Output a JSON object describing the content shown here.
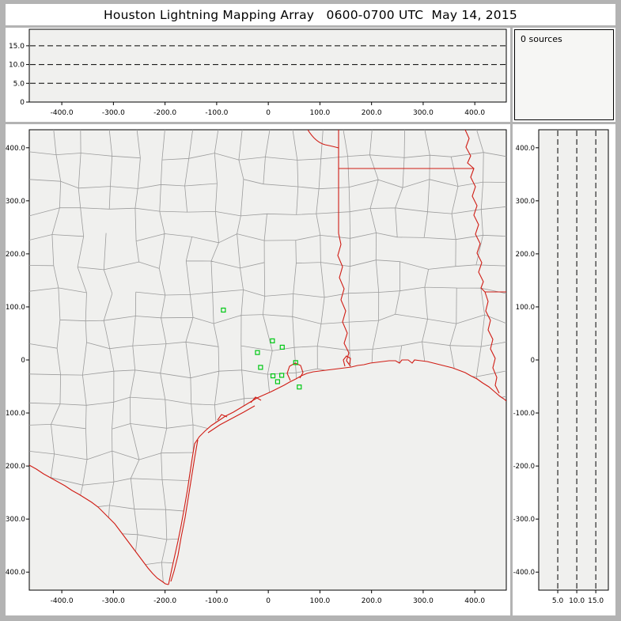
{
  "title": "Houston Lightning Mapping Array   0600-0700 UTC  May 14, 2015",
  "sources_label": "0 sources",
  "colors": {
    "plot_bg": "#f0f0ee",
    "frame_gray": "#b3b3b3",
    "county_line": "#9c9c9c",
    "geo_border_red": "#d01c14",
    "station_green": "#00c814",
    "dash_black": "#000000"
  },
  "chart_data": [
    {
      "id": "ew-altitude-view",
      "type": "scatter",
      "description": "altitude (km) vs east-west distance (km), no sources plotted",
      "x_tick_values": [
        -400,
        -300,
        -200,
        -100,
        0,
        100,
        200,
        300,
        400
      ],
      "x_tick_labels": [
        "-400.0",
        "-300.0",
        "-200.0",
        "-100.0",
        "0",
        "100.0",
        "200.0",
        "300.0",
        "400.0"
      ],
      "xlim": [
        -463,
        461
      ],
      "y_tick_values": [
        0,
        5,
        10,
        15
      ],
      "y_tick_labels": [
        "0",
        "5.0",
        "10.0",
        "15.0"
      ],
      "ylim": [
        0,
        19.4
      ],
      "y_gridlines": [
        5,
        10,
        15
      ],
      "grid_style": "dashed",
      "points": []
    },
    {
      "id": "plan-view-map",
      "type": "scatter",
      "description": "plan view map of Texas / Louisiana region, green open squares are LMA stations, no lightning sources plotted",
      "x_tick_values": [
        -400,
        -300,
        -200,
        -100,
        0,
        100,
        200,
        300,
        400
      ],
      "x_tick_labels": [
        "-400.0",
        "-300.0",
        "-200.0",
        "-100.0",
        "0",
        "100.0",
        "200.0",
        "300.0",
        "400.0"
      ],
      "y_tick_values": [
        400,
        300,
        200,
        100,
        0,
        -100,
        -200,
        -300,
        -400
      ],
      "y_tick_labels": [
        "400.0",
        "300.0",
        "200.0",
        "100.0",
        "0",
        "-100.0",
        "-200.0",
        "-300.0",
        "-400.0"
      ],
      "xlim": [
        -463,
        461
      ],
      "ylim": [
        -434,
        434
      ],
      "station_marker": "open-square",
      "stations_km": [
        [
          -87,
          94
        ],
        [
          8,
          36
        ],
        [
          27,
          24
        ],
        [
          -21,
          14
        ],
        [
          -15,
          -14
        ],
        [
          9,
          -30
        ],
        [
          26,
          -29
        ],
        [
          18,
          -41
        ],
        [
          53,
          -5
        ],
        [
          60,
          -51
        ]
      ],
      "points": []
    },
    {
      "id": "ns-altitude-view",
      "type": "scatter",
      "description": "north-south distance (km) vs altitude (km), no sources plotted",
      "x_tick_values": [
        5,
        10,
        15
      ],
      "x_tick_labels": [
        "5.0",
        "10.0",
        "15.0"
      ],
      "xlim": [
        0,
        18.3
      ],
      "x_gridlines": [
        5,
        10,
        15
      ],
      "grid_style": "dashed",
      "y_tick_values": [
        400,
        300,
        200,
        100,
        0,
        -100,
        -200,
        -300,
        -400
      ],
      "y_tick_labels": [
        "400.0",
        "300.0",
        "200.0",
        "100.0",
        "0",
        "-100.0",
        "-200.0",
        "-300.0",
        "-400.0"
      ],
      "ylim": [
        -434,
        434
      ],
      "points": []
    }
  ]
}
